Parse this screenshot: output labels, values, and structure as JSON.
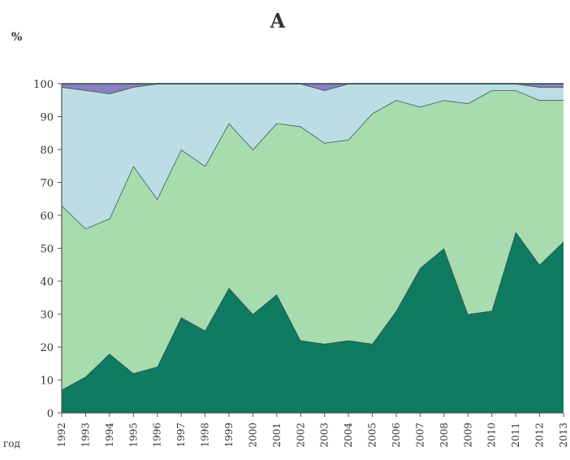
{
  "chart_data": {
    "type": "area",
    "stacked": true,
    "title": "А",
    "ylabel": "%",
    "xlabel": "год",
    "ylim": [
      0,
      100
    ],
    "yticks": [
      0,
      10,
      20,
      30,
      40,
      50,
      60,
      70,
      80,
      90,
      100
    ],
    "categories": [
      "1992",
      "1993",
      "1994",
      "1995",
      "1996",
      "1997",
      "1998",
      "1999",
      "2000",
      "2001",
      "2002",
      "2003",
      "2004",
      "2005",
      "2006",
      "2007",
      "2008",
      "2009",
      "2010",
      "2011",
      "2012",
      "2013"
    ],
    "series": [
      {
        "color": "#0e7a62",
        "values": [
          7,
          11,
          18,
          12,
          14,
          29,
          25,
          38,
          30,
          36,
          22,
          21,
          22,
          21,
          31,
          44,
          50,
          30,
          31,
          55,
          45,
          52
        ]
      },
      {
        "color": "#a6dcae",
        "values": [
          56,
          45,
          41,
          63,
          51,
          51,
          50,
          50,
          50,
          52,
          65,
          61,
          61,
          70,
          64,
          49,
          45,
          64,
          67,
          43,
          50,
          43
        ]
      },
      {
        "color": "#bcdde4",
        "values": [
          36,
          42,
          38,
          24,
          35,
          20,
          25,
          12,
          20,
          12,
          13,
          16,
          17,
          9,
          5,
          7,
          5,
          6,
          2,
          2,
          4,
          4
        ]
      },
      {
        "color": "#8a7fc0",
        "values": [
          1,
          2,
          3,
          1,
          0,
          0,
          0,
          0,
          0,
          0,
          0,
          2,
          0,
          0,
          0,
          0,
          0,
          0,
          0,
          0,
          1,
          1
        ]
      }
    ],
    "grid": false,
    "legend": "none"
  }
}
